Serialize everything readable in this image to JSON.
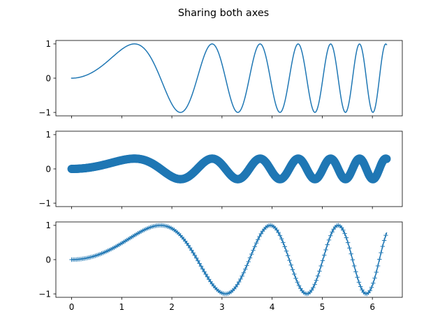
{
  "figure": {
    "suptitle": "Sharing both axes"
  },
  "colors": {
    "series": "#1f77b4",
    "axes": "#000000",
    "background": "#ffffff"
  },
  "chart_data": [
    {
      "type": "line",
      "title": "",
      "xlabel": "",
      "ylabel": "",
      "function": "y = sin(x^2)",
      "x_domain": [
        0,
        6.2832
      ],
      "n_points": 400,
      "xlim": [
        -0.314,
        6.597
      ],
      "ylim": [
        -1.1,
        1.1
      ],
      "xticks": [
        0,
        1,
        2,
        3,
        4,
        5,
        6
      ],
      "xtick_labels_visible": false,
      "yticks": [
        -1,
        0,
        1
      ],
      "ytick_labels": [
        "−1",
        "0",
        "1"
      ],
      "marker": "none",
      "line": "solid",
      "grid": false
    },
    {
      "type": "scatter",
      "title": "",
      "xlabel": "",
      "ylabel": "",
      "function": "y = 0.3 * sin(x^2)",
      "x_domain": [
        0,
        6.2832
      ],
      "n_points": 400,
      "xlim": [
        -0.314,
        6.597
      ],
      "ylim": [
        -1.1,
        1.1
      ],
      "xticks": [
        0,
        1,
        2,
        3,
        4,
        5,
        6
      ],
      "xtick_labels_visible": false,
      "yticks": [
        -1,
        0,
        1
      ],
      "ytick_labels": [
        "−1",
        "0",
        "1"
      ],
      "marker": "circle",
      "line": "none",
      "grid": false
    },
    {
      "type": "line",
      "title": "",
      "xlabel": "",
      "ylabel": "",
      "function": "y = sin(x^2 / 2) with plus markers",
      "x_domain": [
        0,
        6.2832
      ],
      "n_points": 400,
      "marker_every": 2,
      "xlim": [
        -0.314,
        6.597
      ],
      "ylim": [
        -1.1,
        1.1
      ],
      "xticks": [
        0,
        1,
        2,
        3,
        4,
        5,
        6
      ],
      "xtick_labels": [
        "0",
        "1",
        "2",
        "3",
        "4",
        "5",
        "6"
      ],
      "xtick_labels_visible": true,
      "yticks": [
        -1,
        0,
        1
      ],
      "ytick_labels": [
        "−1",
        "0",
        "1"
      ],
      "marker": "plus",
      "line": "solid",
      "grid": false
    }
  ]
}
